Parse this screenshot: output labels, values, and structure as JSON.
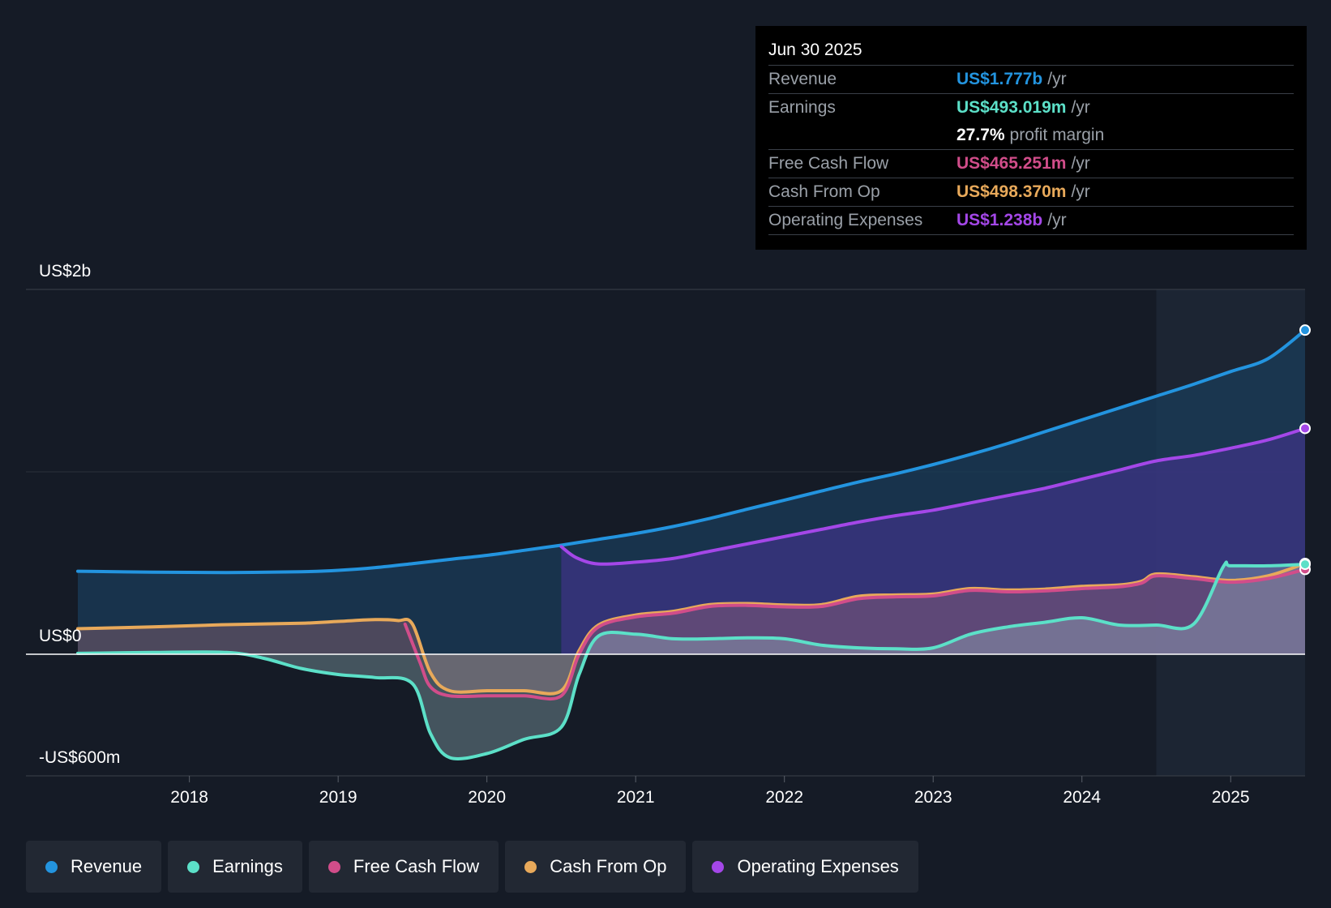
{
  "tooltip": {
    "date": "Jun 30 2025",
    "rows": [
      {
        "label": "Revenue",
        "value": "US$1.777b",
        "unit": "/yr",
        "color": "#2394df"
      },
      {
        "label": "Earnings",
        "value": "US$493.019m",
        "unit": "/yr",
        "color": "#5ce0c8"
      },
      {
        "margin_value": "27.7%",
        "margin_label": "profit margin"
      },
      {
        "label": "Free Cash Flow",
        "value": "US$465.251m",
        "unit": "/yr",
        "color": "#d14d8a"
      },
      {
        "label": "Cash From Op",
        "value": "US$498.370m",
        "unit": "/yr",
        "color": "#e8a95a"
      },
      {
        "label": "Operating Expenses",
        "value": "US$1.238b",
        "unit": "/yr",
        "color": "#a447e8"
      }
    ]
  },
  "legend": [
    {
      "label": "Revenue",
      "color": "#2394df"
    },
    {
      "label": "Earnings",
      "color": "#5ce0c8"
    },
    {
      "label": "Free Cash Flow",
      "color": "#d14d8a"
    },
    {
      "label": "Cash From Op",
      "color": "#e8a95a"
    },
    {
      "label": "Operating Expenses",
      "color": "#a447e8"
    }
  ],
  "chart_data": {
    "type": "line",
    "title": "",
    "y_labels": [
      "US$2b",
      "US$0",
      "-US$600m"
    ],
    "ylim": [
      -600,
      2000
    ],
    "xlim": [
      2017.25,
      2025.5
    ],
    "x_ticks": [
      "2018",
      "2019",
      "2020",
      "2021",
      "2022",
      "2023",
      "2024",
      "2025"
    ],
    "forecast_start": 2024.5,
    "series": [
      {
        "name": "Revenue",
        "color": "#2394df",
        "area": true,
        "x": [
          2017.25,
          2017.75,
          2018.25,
          2018.75,
          2019.0,
          2019.25,
          2019.5,
          2019.75,
          2020.0,
          2020.25,
          2020.5,
          2020.75,
          2021.0,
          2021.25,
          2021.5,
          2021.75,
          2022.0,
          2022.25,
          2022.5,
          2022.75,
          2023.0,
          2023.25,
          2023.5,
          2023.75,
          2024.0,
          2024.25,
          2024.5,
          2024.75,
          2025.0,
          2025.25,
          2025.5
        ],
        "values": [
          455,
          450,
          448,
          452,
          460,
          475,
          497,
          520,
          542,
          570,
          598,
          630,
          662,
          700,
          745,
          795,
          845,
          895,
          945,
          990,
          1040,
          1095,
          1155,
          1220,
          1285,
          1350,
          1415,
          1480,
          1550,
          1620,
          1777
        ]
      },
      {
        "name": "Operating Expenses",
        "color": "#a447e8",
        "area": true,
        "x": [
          2020.5,
          2020.6,
          2020.75,
          2021.0,
          2021.25,
          2021.5,
          2021.75,
          2022.0,
          2022.25,
          2022.5,
          2022.75,
          2023.0,
          2023.25,
          2023.5,
          2023.75,
          2024.0,
          2024.25,
          2024.5,
          2024.75,
          2025.0,
          2025.25,
          2025.5
        ],
        "values": [
          590,
          530,
          495,
          505,
          525,
          565,
          605,
          645,
          685,
          725,
          760,
          790,
          830,
          870,
          910,
          960,
          1010,
          1060,
          1090,
          1130,
          1175,
          1238
        ]
      },
      {
        "name": "Cash From Op",
        "color": "#e8a95a",
        "area": true,
        "x": [
          2017.25,
          2017.75,
          2018.25,
          2018.75,
          2019.0,
          2019.25,
          2019.4,
          2019.5,
          2019.62,
          2019.75,
          2020.0,
          2020.25,
          2020.5,
          2020.62,
          2020.75,
          2021.0,
          2021.25,
          2021.5,
          2021.75,
          2022.0,
          2022.25,
          2022.5,
          2022.75,
          2023.0,
          2023.25,
          2023.5,
          2023.75,
          2024.0,
          2024.25,
          2024.4,
          2024.5,
          2024.75,
          2025.0,
          2025.25,
          2025.5
        ],
        "values": [
          140,
          150,
          162,
          170,
          180,
          190,
          185,
          165,
          -90,
          -180,
          -180,
          -180,
          -180,
          20,
          160,
          215,
          235,
          272,
          278,
          270,
          272,
          318,
          325,
          330,
          360,
          352,
          357,
          372,
          380,
          400,
          440,
          425,
          405,
          430,
          498
        ]
      },
      {
        "name": "Free Cash Flow",
        "color": "#d14d8a",
        "area": false,
        "x": [
          2019.45,
          2019.55,
          2019.62,
          2019.75,
          2020.0,
          2020.25,
          2020.5,
          2020.62,
          2020.75,
          2021.0,
          2021.25,
          2021.5,
          2021.75,
          2022.0,
          2022.25,
          2022.5,
          2022.75,
          2023.0,
          2023.25,
          2023.5,
          2023.75,
          2024.0,
          2024.25,
          2024.4,
          2024.5,
          2024.75,
          2025.0,
          2025.25,
          2025.5
        ],
        "values": [
          165,
          -40,
          -160,
          -205,
          -205,
          -205,
          -205,
          0,
          150,
          205,
          225,
          262,
          268,
          260,
          262,
          305,
          315,
          320,
          350,
          342,
          347,
          360,
          370,
          390,
          430,
          415,
          395,
          415,
          465
        ]
      },
      {
        "name": "Earnings",
        "color": "#5ce0c8",
        "area": true,
        "x": [
          2017.25,
          2017.75,
          2018.25,
          2018.5,
          2018.75,
          2019.0,
          2019.25,
          2019.5,
          2019.62,
          2019.75,
          2020.0,
          2020.25,
          2020.5,
          2020.62,
          2020.75,
          2021.0,
          2021.25,
          2021.5,
          2021.75,
          2022.0,
          2022.25,
          2022.5,
          2022.75,
          2023.0,
          2023.25,
          2023.5,
          2023.75,
          2024.0,
          2024.25,
          2024.5,
          2024.75,
          2024.95,
          2025.0,
          2025.25,
          2025.5
        ],
        "values": [
          5,
          10,
          10,
          -20,
          -70,
          -100,
          -115,
          -145,
          -390,
          -510,
          -490,
          -420,
          -360,
          -100,
          100,
          110,
          85,
          85,
          90,
          85,
          50,
          35,
          30,
          35,
          110,
          150,
          175,
          200,
          160,
          160,
          165,
          480,
          485,
          485,
          493
        ]
      }
    ]
  }
}
